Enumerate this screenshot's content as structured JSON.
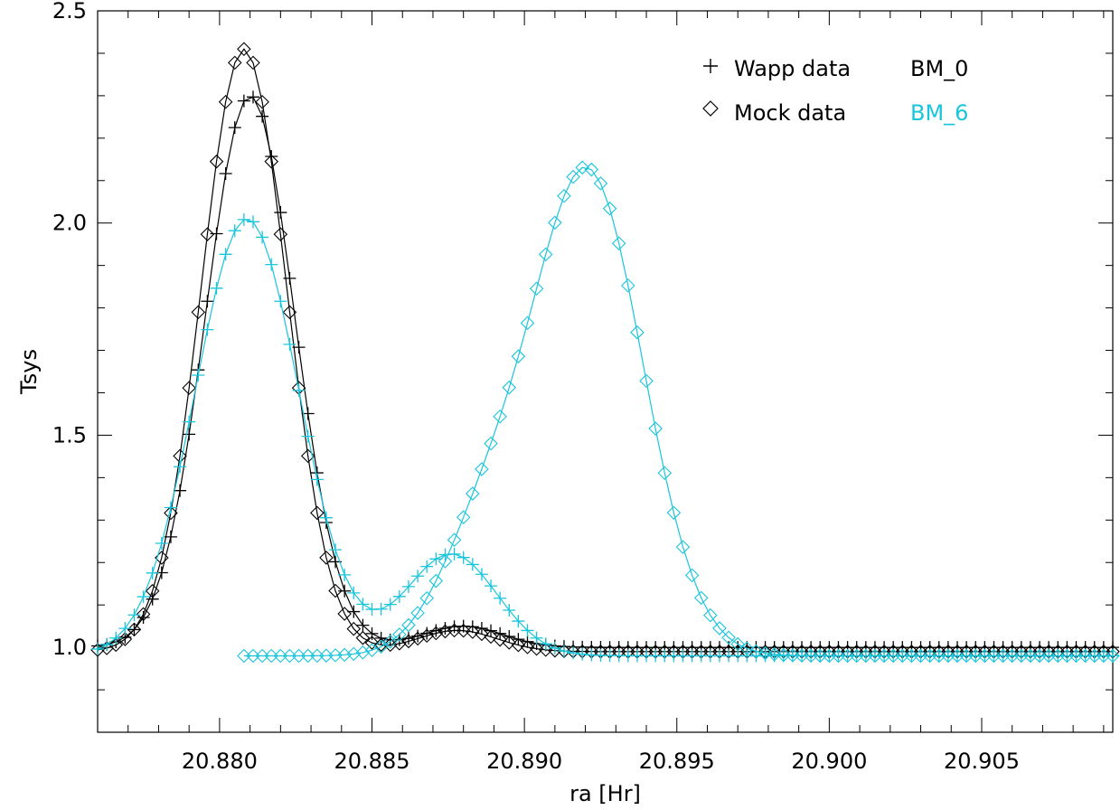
{
  "chart_data": {
    "type": "line",
    "title": "",
    "xlabel": "ra [Hr]",
    "ylabel": "Tsys",
    "xlim": [
      20.876,
      20.9093
    ],
    "ylim": [
      0.8,
      2.5
    ],
    "x_ticks": [
      "20.880",
      "20.885",
      "20.890",
      "20.895",
      "20.900",
      "20.905"
    ],
    "y_ticks": [
      "1.0",
      "1.5",
      "2.0",
      "2.5"
    ],
    "legend": {
      "position": "top-right",
      "markers": [
        {
          "symbol": "plus",
          "label": "Wapp data"
        },
        {
          "symbol": "diamond",
          "label": "Mock data"
        }
      ],
      "beams": [
        {
          "label": "BM_0",
          "color": "#000000"
        },
        {
          "label": "BM_6",
          "color": "#19c5dc"
        }
      ]
    },
    "series": [
      {
        "beam": "BM_0",
        "instrument": "Wapp data",
        "marker": "plus",
        "color": "#000000",
        "peaks": [
          {
            "center": 20.881,
            "amplitude": 1.3,
            "sigma": 0.00145
          },
          {
            "center": 20.888,
            "amplitude": 0.05,
            "sigma": 0.0013
          }
        ],
        "baseline": 1.0,
        "x_start": 20.876,
        "x_end": 20.9093,
        "step": 0.0003
      },
      {
        "beam": "BM_0",
        "instrument": "Mock data",
        "marker": "diamond",
        "color": "#000000",
        "peaks": [
          {
            "center": 20.8808,
            "amplitude": 1.42,
            "sigma": 0.0014
          },
          {
            "center": 20.8878,
            "amplitude": 0.05,
            "sigma": 0.0013
          }
        ],
        "baseline": 0.99,
        "x_start": 20.876,
        "x_end": 20.9093,
        "step": 0.0003
      },
      {
        "beam": "BM_6",
        "instrument": "Wapp data",
        "marker": "plus",
        "color": "#19c5dc",
        "peaks": [
          {
            "center": 20.8809,
            "amplitude": 1.03,
            "sigma": 0.0017
          },
          {
            "center": 20.8876,
            "amplitude": 0.24,
            "sigma": 0.0015
          }
        ],
        "baseline": 0.98,
        "x_start": 20.876,
        "x_end": 20.9093,
        "step": 0.0003
      },
      {
        "beam": "BM_6",
        "instrument": "Mock data",
        "marker": "diamond",
        "color": "#19c5dc",
        "peaks": [
          {
            "center": 20.8921,
            "amplitude": 1.13,
            "sigma": 0.0018
          },
          {
            "center": 20.8887,
            "amplitude": 0.27,
            "sigma": 0.0015
          }
        ],
        "baseline": 0.98,
        "x_start": 20.8808,
        "x_end": 20.9093,
        "step": 0.0003
      }
    ]
  }
}
